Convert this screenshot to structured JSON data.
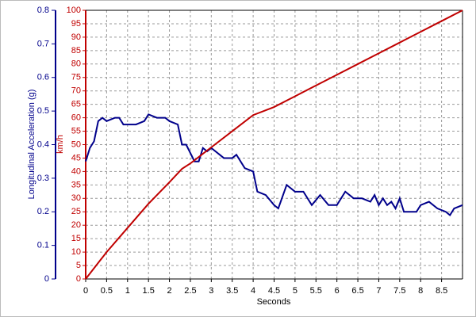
{
  "chart_data": {
    "type": "line",
    "ylabel": "Longitudinal Acceleration (g)",
    "y2label": "km/h",
    "xlabel": "Seconds",
    "xlim": [
      0,
      9
    ],
    "xticks": [
      0,
      0.5,
      1,
      1.5,
      2,
      2.5,
      3,
      3.5,
      4,
      4.5,
      5,
      5.5,
      6,
      6.5,
      7,
      7.5,
      8,
      8.5
    ],
    "ylim": [
      0,
      0.8
    ],
    "yticks": [
      0,
      0.1,
      0.2,
      0.3,
      0.4,
      0.5,
      0.6,
      0.7,
      0.8
    ],
    "y2lim": [
      0,
      100
    ],
    "y2ticks": [
      0,
      5,
      10,
      15,
      20,
      25,
      30,
      35,
      40,
      45,
      50,
      55,
      60,
      65,
      70,
      75,
      80,
      85,
      90,
      95,
      100
    ],
    "grid": true,
    "ycolor": "#00008b",
    "y2color": "#c00000",
    "series": [
      {
        "color": "#00008b",
        "axis": "y",
        "x": [
          0,
          0.1,
          0.2,
          0.3,
          0.4,
          0.5,
          0.7,
          0.8,
          0.9,
          1.2,
          1.4,
          1.5,
          1.7,
          1.9,
          2.0,
          2.2,
          2.3,
          2.4,
          2.6,
          2.7,
          2.8,
          2.9,
          3.0,
          3.2,
          3.3,
          3.5,
          3.6,
          3.8,
          4.0,
          4.1,
          4.3,
          4.5,
          4.6,
          4.8,
          5.0,
          5.2,
          5.4,
          5.6,
          5.8,
          6.0,
          6.2,
          6.4,
          6.6,
          6.8,
          6.9,
          7.0,
          7.1,
          7.2,
          7.3,
          7.4,
          7.5,
          7.6,
          7.9,
          8.0,
          8.2,
          8.4,
          8.6,
          8.7,
          8.8,
          9.0
        ],
        "values": [
          0.35,
          0.39,
          0.41,
          0.47,
          0.48,
          0.47,
          0.48,
          0.48,
          0.46,
          0.46,
          0.47,
          0.49,
          0.48,
          0.48,
          0.47,
          0.46,
          0.4,
          0.4,
          0.35,
          0.35,
          0.39,
          0.38,
          0.39,
          0.37,
          0.36,
          0.36,
          0.37,
          0.33,
          0.32,
          0.26,
          0.25,
          0.22,
          0.21,
          0.28,
          0.26,
          0.26,
          0.22,
          0.25,
          0.22,
          0.22,
          0.26,
          0.24,
          0.24,
          0.23,
          0.25,
          0.22,
          0.24,
          0.22,
          0.23,
          0.21,
          0.24,
          0.2,
          0.2,
          0.22,
          0.23,
          0.21,
          0.2,
          0.19,
          0.21,
          0.22
        ]
      },
      {
        "color": "#c00000",
        "axis": "y2",
        "x": [
          0,
          0.5,
          1,
          1.5,
          2,
          2.3,
          2.5,
          3,
          3.5,
          4,
          4.5,
          5,
          5.5,
          6,
          6.5,
          7,
          7.5,
          8,
          8.5,
          9
        ],
        "values": [
          0,
          10,
          19,
          28,
          36,
          41,
          43,
          49,
          55,
          61,
          64,
          68,
          72,
          76,
          80,
          84,
          88,
          92,
          96,
          100
        ]
      }
    ]
  }
}
